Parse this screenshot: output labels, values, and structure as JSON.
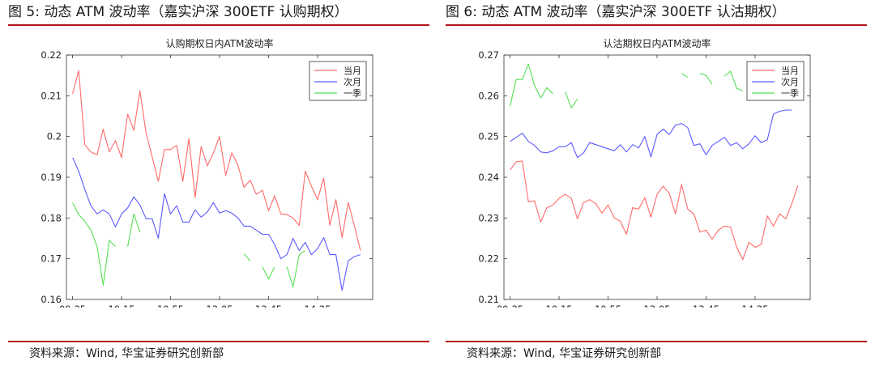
{
  "panels": [
    {
      "figure_title": "图 5:  动态 ATM 波动率（嘉实沪深 300ETF 认购期权）",
      "source": "资料来源：Wind,  华宝证券研究创新部"
    },
    {
      "figure_title": "图 6:  动态 ATM 波动率（嘉实沪深 300ETF 认沽期权）",
      "source": "资料来源：Wind,  华宝证券研究创新部"
    }
  ],
  "colors": {
    "rule": "#b5121b",
    "current_month": "#ff6a6a",
    "next_month": "#5a5aff",
    "one_quarter": "#55e055"
  },
  "chart_data": [
    {
      "type": "line",
      "title": "认购期权日内ATM波动率",
      "xlabel": "",
      "ylabel": "",
      "x_ticks": [
        "09:35",
        "10:15",
        "10:55",
        "13:05",
        "13:45",
        "14:25"
      ],
      "x_tick_index": [
        0,
        8,
        16,
        24,
        32,
        40
      ],
      "x_range": [
        -1,
        49
      ],
      "ylim": [
        0.16,
        0.22
      ],
      "y_ticks": [
        "0.16",
        "0.17",
        "0.18",
        "0.19",
        "0.2",
        "0.21",
        "0.22"
      ],
      "grid": false,
      "legend_position": "top-right",
      "series": [
        {
          "name": "当月",
          "color": "#ff6a6a",
          "values": [
            0.2105,
            0.2162,
            0.198,
            0.1962,
            0.1955,
            0.2018,
            0.1962,
            0.199,
            0.1948,
            0.2055,
            0.2015,
            0.2112,
            0.2008,
            0.195,
            0.189,
            0.1968,
            0.1968,
            0.1978,
            0.189,
            0.1995,
            0.185,
            0.1975,
            0.1928,
            0.196,
            0.2,
            0.1905,
            0.196,
            0.193,
            0.1875,
            0.1893,
            0.1858,
            0.1868,
            0.1818,
            0.1855,
            0.181,
            0.1808,
            0.18,
            0.1782,
            0.1915,
            0.1878,
            0.1845,
            0.1898,
            0.1782,
            0.1845,
            0.1752,
            0.1838,
            0.1782,
            0.172
          ]
        },
        {
          "name": "次月",
          "color": "#5a5aff",
          "values": [
            0.1948,
            0.1915,
            0.187,
            0.183,
            0.181,
            0.182,
            0.181,
            0.1778,
            0.181,
            0.1825,
            0.1852,
            0.1832,
            0.1798,
            0.1798,
            0.175,
            0.186,
            0.181,
            0.183,
            0.179,
            0.179,
            0.182,
            0.1802,
            0.1815,
            0.1838,
            0.1812,
            0.1818,
            0.1812,
            0.18,
            0.178,
            0.178,
            0.177,
            0.176,
            0.176,
            0.1735,
            0.17,
            0.171,
            0.175,
            0.172,
            0.174,
            0.171,
            0.1725,
            0.1752,
            0.171,
            0.171,
            0.1622,
            0.1695,
            0.1705,
            0.171
          ]
        },
        {
          "name": "一季",
          "color": "#55e055",
          "values": [
            0.1838,
            0.1808,
            0.1792,
            0.177,
            0.173,
            0.1635,
            0.1745,
            0.173,
            null,
            0.173,
            0.181,
            0.1765,
            null,
            null,
            null,
            null,
            null,
            null,
            null,
            null,
            null,
            null,
            null,
            null,
            null,
            null,
            null,
            null,
            0.1712,
            0.1695,
            null,
            0.168,
            0.165,
            0.168,
            null,
            0.168,
            0.163,
            0.171,
            0.172,
            null,
            null,
            null,
            null,
            null,
            null,
            null,
            null,
            null
          ]
        }
      ]
    },
    {
      "type": "line",
      "title": "认沽期权日内ATM波动率",
      "xlabel": "",
      "ylabel": "",
      "x_ticks": [
        "09:35",
        "10:15",
        "10:55",
        "13:05",
        "13:45",
        "14:25"
      ],
      "x_tick_index": [
        0,
        8,
        16,
        24,
        32,
        40
      ],
      "x_range": [
        -1,
        49
      ],
      "ylim": [
        0.21,
        0.27
      ],
      "y_ticks": [
        "0.21",
        "0.22",
        "0.23",
        "0.24",
        "0.25",
        "0.26",
        "0.27"
      ],
      "grid": false,
      "legend_position": "top-right",
      "series": [
        {
          "name": "当月",
          "color": "#ff6a6a",
          "values": [
            0.2418,
            0.2438,
            0.244,
            0.234,
            0.2342,
            0.229,
            0.2325,
            0.2332,
            0.2348,
            0.2358,
            0.2348,
            0.2298,
            0.2338,
            0.2345,
            0.2335,
            0.2312,
            0.2332,
            0.23,
            0.2292,
            0.226,
            0.2325,
            0.2322,
            0.235,
            0.2302,
            0.2358,
            0.2378,
            0.236,
            0.231,
            0.2382,
            0.2322,
            0.231,
            0.2265,
            0.227,
            0.2248,
            0.227,
            0.228,
            0.2278,
            0.2228,
            0.2198,
            0.224,
            0.2228,
            0.2235,
            0.2305,
            0.228,
            0.231,
            0.2298,
            0.2335,
            0.238
          ]
        },
        {
          "name": "次月",
          "color": "#5a5aff",
          "values": [
            0.2488,
            0.2498,
            0.2508,
            0.2488,
            0.2478,
            0.2462,
            0.246,
            0.2465,
            0.2475,
            0.2475,
            0.2485,
            0.2448,
            0.246,
            0.2485,
            0.248,
            0.2475,
            0.247,
            0.2465,
            0.248,
            0.2462,
            0.248,
            0.2472,
            0.25,
            0.245,
            0.2505,
            0.2518,
            0.2505,
            0.2528,
            0.2532,
            0.2522,
            0.2478,
            0.2482,
            0.2455,
            0.2478,
            0.2488,
            0.2498,
            0.2478,
            0.2485,
            0.247,
            0.2482,
            0.2502,
            0.2485,
            0.2492,
            0.2555,
            0.2562,
            0.2565,
            0.2565,
            null
          ]
        },
        {
          "name": "一季",
          "color": "#55e055",
          "values": [
            0.2575,
            0.264,
            0.264,
            0.2678,
            0.2625,
            0.2595,
            0.262,
            0.2605,
            null,
            0.261,
            0.257,
            0.2592,
            null,
            null,
            null,
            null,
            null,
            null,
            null,
            null,
            null,
            null,
            null,
            null,
            null,
            null,
            null,
            null,
            0.2655,
            0.2645,
            null,
            0.2655,
            0.265,
            0.2628,
            null,
            0.2648,
            0.266,
            0.2618,
            0.2612,
            null,
            null,
            null,
            null,
            null,
            null,
            null,
            null,
            null
          ]
        }
      ]
    }
  ]
}
